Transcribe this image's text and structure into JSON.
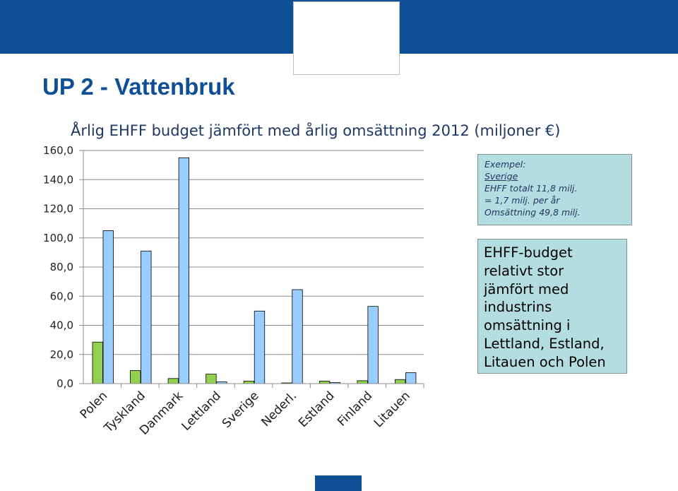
{
  "slide": {
    "title": "UP 2 - Vattenbruk"
  },
  "example_box": {
    "lines": [
      "Exempel:",
      "Sverige",
      "EHFF totalt 11,8 milj.",
      "= 1,7 milj. per år",
      "Omsättning 49,8 milj."
    ]
  },
  "note_box": {
    "lines": [
      "EHFF-budget",
      "relativt stor",
      "jämfört med",
      "industrins",
      "omsättning i",
      "Lettland, Estland,",
      "Litauen och Polen"
    ]
  },
  "colors": {
    "header_band": "#0e4f96",
    "title": "#0e4f96",
    "ehff_bar": "#92d050",
    "turnover_bar": "#99ccff",
    "callout_fill": "#b4dde1"
  },
  "chart_data": {
    "type": "bar",
    "title": "Årlig EHFF budget jämfört med årlig omsättning 2012 (miljoner €)",
    "xlabel": "",
    "ylabel": "",
    "categories": [
      "Polen",
      "Tyskland",
      "Danmark",
      "Lettland",
      "Sverige",
      "Nederl.",
      "Estland",
      "Finland",
      "Litauen"
    ],
    "series": [
      {
        "values": [
          28.5,
          9.0,
          3.5,
          6.5,
          1.7,
          0.5,
          1.7,
          2.0,
          2.8
        ],
        "color": "#92d050"
      },
      {
        "values": [
          105.0,
          91.0,
          155.0,
          1.2,
          49.8,
          64.5,
          0.7,
          53.0,
          7.5
        ],
        "color": "#99ccff"
      }
    ],
    "ylim": [
      0,
      160
    ],
    "yticks": [
      "0,0",
      "20,0",
      "40,0",
      "60,0",
      "80,0",
      "100,0",
      "120,0",
      "140,0",
      "160,0"
    ],
    "grid": true,
    "legend": "none"
  }
}
